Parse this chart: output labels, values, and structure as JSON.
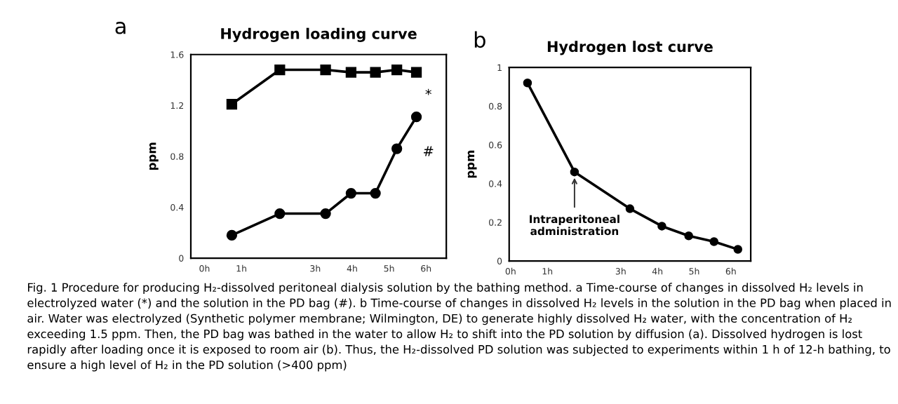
{
  "chart_data": [
    {
      "type": "line",
      "title": "Hydrogen loading curve",
      "ylabel": "ppm",
      "x": [
        0.74,
        2.04,
        3.28,
        3.97,
        4.63,
        5.21,
        5.74
      ],
      "series": [
        {
          "color": "#000000",
          "marker": "square",
          "values": [
            1.21,
            1.48,
            1.48,
            1.46,
            1.46,
            1.48,
            1.46
          ]
        },
        {
          "color": "#000000",
          "marker": "circle",
          "values": [
            0.18,
            0.35,
            0.35,
            0.51,
            0.51,
            0.86,
            1.11
          ]
        }
      ],
      "xlim": [
        -0.37,
        6.55
      ],
      "xticks": [
        {
          "value": 0,
          "label": "0h"
        },
        {
          "value": 1,
          "label": "1h"
        },
        {
          "value": 3,
          "label": "3h"
        },
        {
          "value": 4,
          "label": "4h"
        },
        {
          "value": 5,
          "label": "5h"
        },
        {
          "value": 6,
          "label": "6h"
        }
      ],
      "ylim": [
        0,
        1.6
      ],
      "yticks": [
        0,
        0.4,
        0.8,
        1.2,
        1.6
      ],
      "grid": false,
      "line_style": "solid",
      "annotations": [
        "a",
        "*",
        "#"
      ]
    },
    {
      "type": "line",
      "title": "Hydrogen lost curve",
      "ylabel": "ppm",
      "x": [
        0.46,
        1.74,
        3.25,
        4.12,
        4.85,
        5.54,
        6.19
      ],
      "series": [
        {
          "color": "#000000",
          "marker": "circle",
          "values": [
            0.92,
            0.46,
            0.27,
            0.18,
            0.13,
            0.1,
            0.06
          ]
        }
      ],
      "xlim": [
        -0.04,
        6.54
      ],
      "xticks": [
        {
          "value": 0,
          "label": "0h"
        },
        {
          "value": 1,
          "label": "1h"
        },
        {
          "value": 3,
          "label": "3h"
        },
        {
          "value": 4,
          "label": "4h"
        },
        {
          "value": 5,
          "label": "5h"
        },
        {
          "value": 6,
          "label": "6h"
        }
      ],
      "ylim": [
        0,
        1
      ],
      "yticks": [
        0,
        0.2,
        0.4,
        0.6,
        0.8,
        1
      ],
      "grid": false,
      "line_style": "solid",
      "annotations": [
        "b",
        {
          "text": "Intraperitoneal\nadministration",
          "x": 1.74,
          "y": 0.46
        },
        "Fig. 1 Procedure for producing H₂-dissolved peritoneal dialysis solution by the bathing method. a Time-course of changes in dissolved H₂ levels in electrolyzed water (*) and the solution in the PD bag (#). b Time-course of changes in dissolved H₂ levels in the solution in the PD bag when placed in air. Water was electrolyzed (Synthetic polymer membrane; Wilmington, DE) to generate highly dissolved H₂ water, with the concentration of H₂ exceeding 1.5 ppm. Then, the PD bag was bathed in the water to allow H₂ to shift into the PD solution by diffusion (a). Dissolved hydrogen is lost rapidly after loading once it is exposed to room air (b). Thus, the H₂-dissolved PD solution was subjected to experiments within 1 h of 12-h bathing, to ensure a high level of H₂ in the PD solution (>400 ppm)"
      ]
    }
  ]
}
